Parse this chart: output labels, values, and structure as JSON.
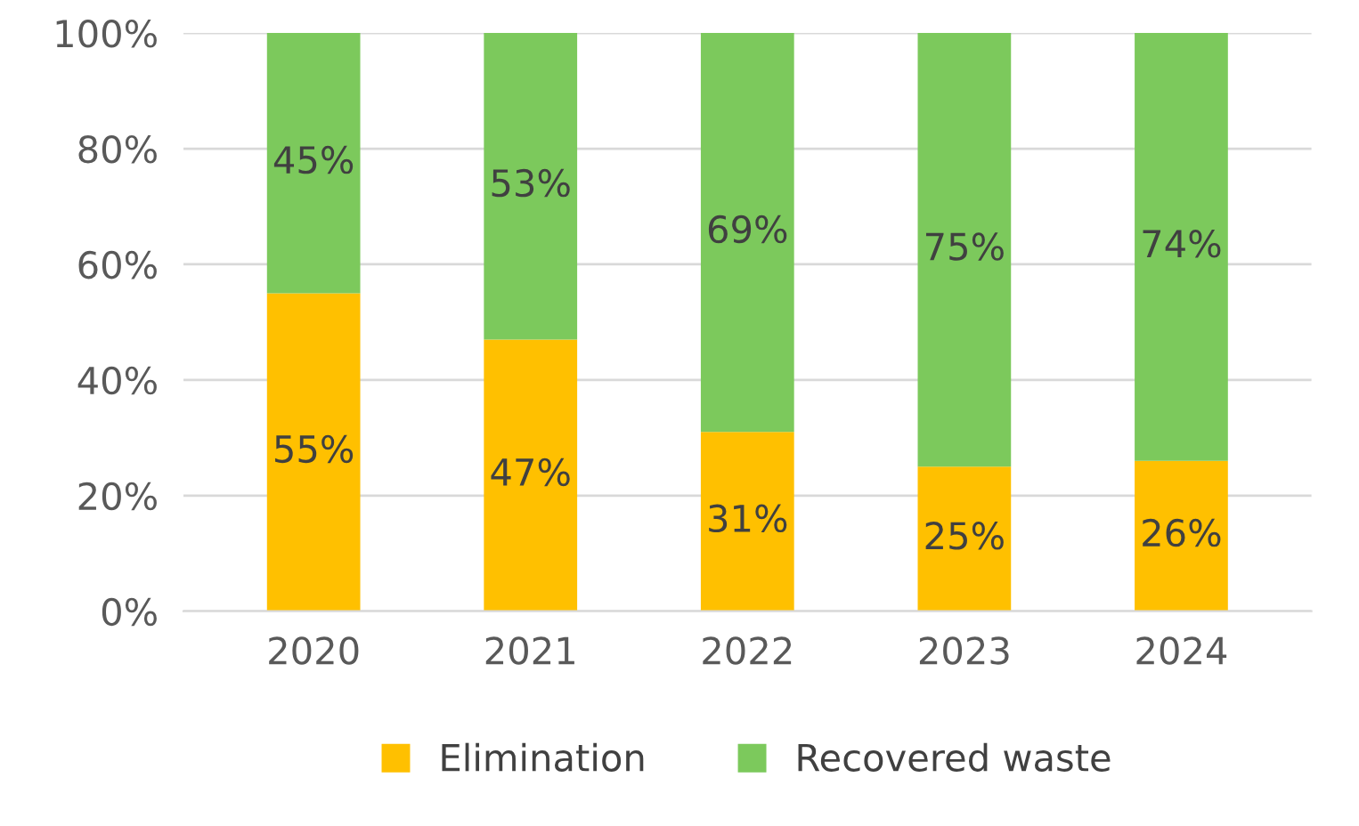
{
  "chart_data": {
    "type": "bar",
    "stacked": true,
    "categories": [
      "2020",
      "2021",
      "2022",
      "2023",
      "2024"
    ],
    "series": [
      {
        "name": "Elimination",
        "color": "#ffc000",
        "values": [
          55,
          47,
          31,
          25,
          26
        ],
        "value_labels": [
          "55%",
          "47%",
          "31%",
          "25%",
          "26%"
        ]
      },
      {
        "name": "Recovered waste",
        "color": "#7cc95c",
        "values": [
          45,
          53,
          69,
          75,
          74
        ],
        "value_labels": [
          "45%",
          "53%",
          "69%",
          "75%",
          "74%"
        ]
      }
    ],
    "ylim": [
      0,
      100
    ],
    "yticks": [
      {
        "value": 0,
        "label": "0%"
      },
      {
        "value": 20,
        "label": "20%"
      },
      {
        "value": 40,
        "label": "40%"
      },
      {
        "value": 60,
        "label": "60%"
      },
      {
        "value": 80,
        "label": "80%"
      },
      {
        "value": 100,
        "label": "100%"
      }
    ],
    "grid": "y",
    "legend": "bottom"
  }
}
